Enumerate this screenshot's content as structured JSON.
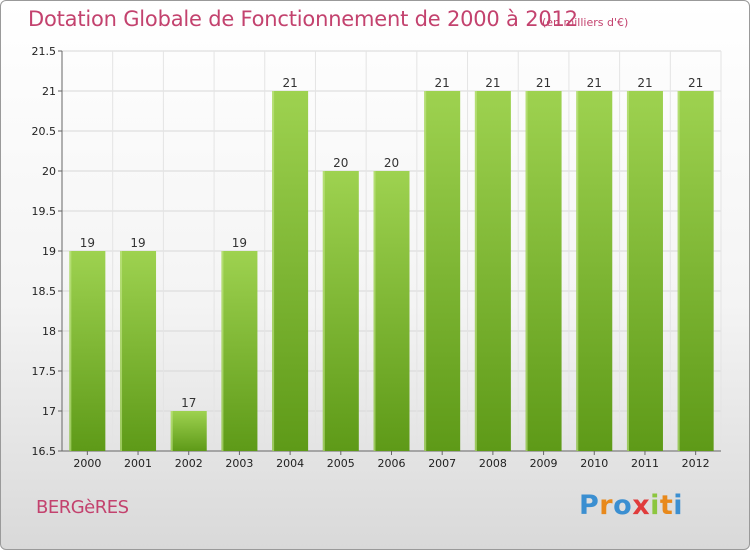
{
  "title": "Dotation Globale de Fonctionnement de 2000 à 2012",
  "subtitle": "(en milliers d'€)",
  "commune": "BERGèRES",
  "logo": {
    "text": "Proxiti",
    "colors": [
      "#3b8fd1",
      "#e8891b",
      "#3b8fd1",
      "#e03c3c",
      "#8cc63f",
      "#e8891b",
      "#3b8fd1"
    ]
  },
  "colors": {
    "title": "#c3426e",
    "bar_light": "#9ed250",
    "bar_dark": "#5e9a18"
  },
  "chart_data": {
    "type": "bar",
    "title": "Dotation Globale de Fonctionnement de 2000 à 2012",
    "subtitle": "(en milliers d'€)",
    "categories": [
      "2000",
      "2001",
      "2002",
      "2003",
      "2004",
      "2005",
      "2006",
      "2007",
      "2008",
      "2009",
      "2010",
      "2011",
      "2012"
    ],
    "values": [
      19,
      19,
      17,
      19,
      21,
      20,
      20,
      21,
      21,
      21,
      21,
      21,
      21
    ],
    "data_labels": [
      "19",
      "19",
      "17",
      "19",
      "21",
      "20",
      "20",
      "21",
      "21",
      "21",
      "21",
      "21",
      "21"
    ],
    "ylim": [
      16.5,
      21.5
    ],
    "yticks": [
      16.5,
      17,
      17.5,
      18,
      18.5,
      19,
      19.5,
      20,
      20.5,
      21,
      21.5
    ],
    "ytick_labels": [
      "16.5",
      "17",
      "17.5",
      "18",
      "18.5",
      "19",
      "19.5",
      "20",
      "20.5",
      "21",
      "21.5"
    ],
    "grid": true,
    "legend": "none",
    "xlabel": "",
    "ylabel": ""
  }
}
